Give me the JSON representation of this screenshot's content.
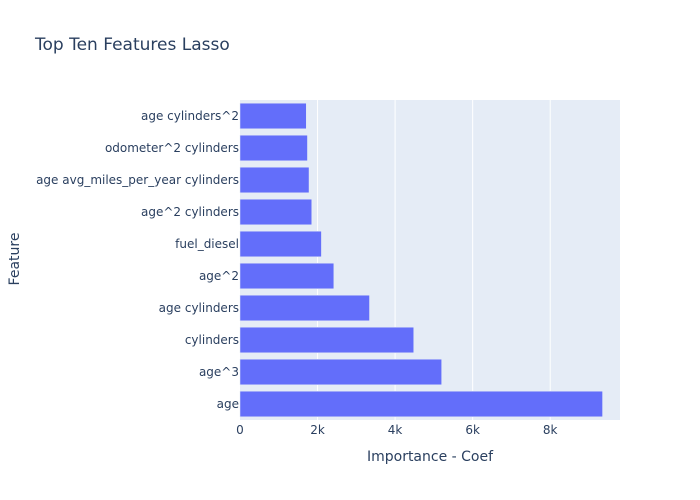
{
  "chart_data": {
    "type": "bar",
    "orientation": "horizontal",
    "title": "Top Ten Features Lasso",
    "xlabel": "Importance - Coef",
    "ylabel": "Feature",
    "categories": [
      "age",
      "age^3",
      "cylinders",
      "age cylinders",
      "age^2",
      "fuel_diesel",
      "age^2 cylinders",
      "age avg_miles_per_year cylinders",
      "odometer^2 cylinders",
      "age cylinders^2"
    ],
    "values": [
      9350,
      5200,
      4480,
      3340,
      2420,
      2100,
      1850,
      1780,
      1740,
      1710
    ],
    "xlim": [
      0,
      9800
    ],
    "xticks": [
      0,
      2000,
      4000,
      6000,
      8000
    ],
    "xtick_labels": [
      "0",
      "2k",
      "4k",
      "6k",
      "8k"
    ],
    "grid": true,
    "colors": {
      "bar": "#636efa",
      "plot_bg": "#e5ecf6",
      "grid": "#ffffff",
      "text": "#2a3f5f"
    }
  }
}
